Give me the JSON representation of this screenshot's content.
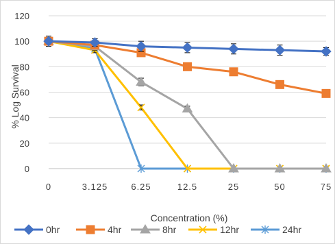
{
  "chart_data": {
    "type": "line",
    "xlabel": "Concentration (%)",
    "ylabel": "% Log Survival",
    "categories": [
      "0",
      "3.125",
      "6.25",
      "12.5",
      "25",
      "50",
      "75"
    ],
    "ylim": [
      0,
      120
    ],
    "yticks": [
      0,
      20,
      40,
      60,
      80,
      100,
      120
    ],
    "grid": "horizontal",
    "legend_position": "bottom",
    "series": [
      {
        "name": "0hr",
        "color": "#4472C4",
        "marker": "diamond",
        "values": [
          100,
          99,
          96,
          95,
          94,
          93,
          92
        ],
        "error": [
          4,
          3,
          4,
          4,
          4,
          4,
          3
        ]
      },
      {
        "name": "4hr",
        "color": "#ED7D31",
        "marker": "square",
        "values": [
          100,
          97,
          91,
          80,
          76,
          66,
          59
        ],
        "error": [
          3,
          3,
          3,
          3,
          3,
          2,
          2
        ]
      },
      {
        "name": "8hr",
        "color": "#A5A5A5",
        "marker": "triangle",
        "values": [
          100,
          96,
          68,
          47,
          0,
          0,
          0
        ],
        "error": [
          3,
          3,
          3,
          2,
          0,
          0,
          0
        ]
      },
      {
        "name": "12hr",
        "color": "#FFC000",
        "marker": "x",
        "values": [
          100,
          93,
          48,
          0,
          0,
          0,
          0
        ],
        "error": [
          3,
          2,
          2,
          0,
          0,
          0,
          0
        ]
      },
      {
        "name": "24hr",
        "color": "#5B9BD5",
        "marker": "star",
        "values": [
          100,
          94,
          0,
          0,
          0,
          0,
          0
        ],
        "error": [
          3,
          2,
          0,
          0,
          0,
          0,
          0
        ]
      }
    ]
  }
}
